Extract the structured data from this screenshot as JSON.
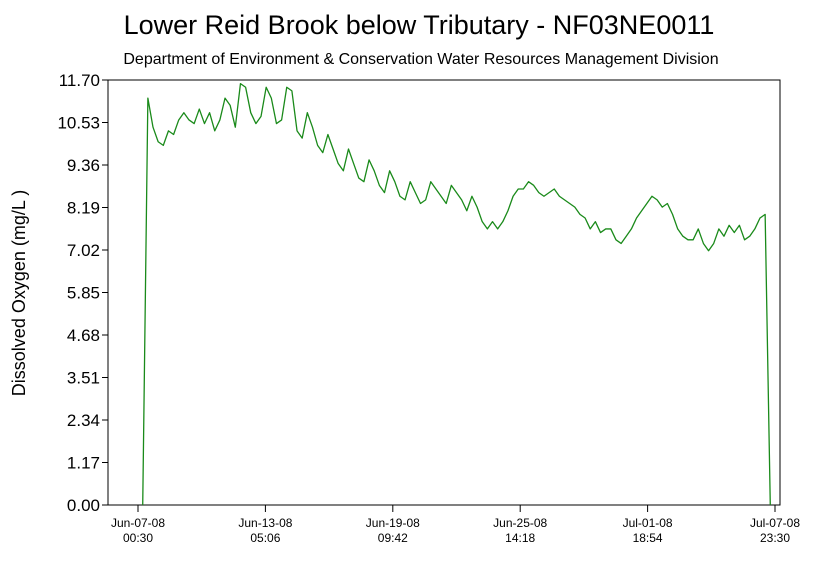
{
  "chart_data": {
    "type": "line",
    "title": "Lower Reid Brook below Tributary - NF03NE0011",
    "subtitle": "Department of Environment & Conservation Water Resources Management Division",
    "y_label": "Dissolved Oxygen (mg/L )",
    "color": "#1a8a1a",
    "x": [
      "2008-06-07 06:00",
      "2008-06-07 12:00",
      "2008-06-07 18:00",
      "2008-06-08 00:00",
      "2008-06-08 06:00",
      "2008-06-08 12:00",
      "2008-06-08 18:00",
      "2008-06-09 00:00",
      "2008-06-09 06:00",
      "2008-06-09 12:00",
      "2008-06-09 18:00",
      "2008-06-10 00:00",
      "2008-06-10 06:00",
      "2008-06-10 12:00",
      "2008-06-10 18:00",
      "2008-06-11 00:00",
      "2008-06-11 06:00",
      "2008-06-11 12:00",
      "2008-06-11 18:00",
      "2008-06-12 00:00",
      "2008-06-12 06:00",
      "2008-06-12 12:00",
      "2008-06-12 18:00",
      "2008-06-13 00:00",
      "2008-06-13 06:00",
      "2008-06-13 12:00",
      "2008-06-13 18:00",
      "2008-06-14 00:00",
      "2008-06-14 06:00",
      "2008-06-14 12:00",
      "2008-06-14 18:00",
      "2008-06-15 00:00",
      "2008-06-15 06:00",
      "2008-06-15 12:00",
      "2008-06-15 18:00",
      "2008-06-16 00:00",
      "2008-06-16 06:00",
      "2008-06-16 12:00",
      "2008-06-16 18:00",
      "2008-06-17 00:00",
      "2008-06-17 06:00",
      "2008-06-17 12:00",
      "2008-06-17 18:00",
      "2008-06-18 00:00",
      "2008-06-18 06:00",
      "2008-06-18 12:00",
      "2008-06-18 18:00",
      "2008-06-19 00:00",
      "2008-06-19 06:00",
      "2008-06-19 12:00",
      "2008-06-19 18:00",
      "2008-06-20 00:00",
      "2008-06-20 06:00",
      "2008-06-20 12:00",
      "2008-06-20 18:00",
      "2008-06-21 00:00",
      "2008-06-21 06:00",
      "2008-06-21 12:00",
      "2008-06-21 18:00",
      "2008-06-22 00:00",
      "2008-06-22 06:00",
      "2008-06-22 12:00",
      "2008-06-22 18:00",
      "2008-06-23 00:00",
      "2008-06-23 06:00",
      "2008-06-23 12:00",
      "2008-06-23 18:00",
      "2008-06-24 00:00",
      "2008-06-24 06:00",
      "2008-06-24 12:00",
      "2008-06-24 18:00",
      "2008-06-25 00:00",
      "2008-06-25 06:00",
      "2008-06-25 12:00",
      "2008-06-25 18:00",
      "2008-06-26 00:00",
      "2008-06-26 06:00",
      "2008-06-26 12:00",
      "2008-06-26 18:00",
      "2008-06-27 00:00",
      "2008-06-27 06:00",
      "2008-06-27 12:00",
      "2008-06-27 18:00",
      "2008-06-28 00:00",
      "2008-06-28 06:00",
      "2008-06-28 12:00",
      "2008-06-28 18:00",
      "2008-06-29 00:00",
      "2008-06-29 06:00",
      "2008-06-29 12:00",
      "2008-06-29 18:00",
      "2008-06-30 00:00",
      "2008-06-30 06:00",
      "2008-06-30 12:00",
      "2008-06-30 18:00",
      "2008-07-01 00:00",
      "2008-07-01 06:00",
      "2008-07-01 12:00",
      "2008-07-01 18:00",
      "2008-07-02 00:00",
      "2008-07-02 06:00",
      "2008-07-02 12:00",
      "2008-07-02 18:00",
      "2008-07-03 00:00",
      "2008-07-03 06:00",
      "2008-07-03 12:00",
      "2008-07-03 18:00",
      "2008-07-04 00:00",
      "2008-07-04 06:00",
      "2008-07-04 12:00",
      "2008-07-04 18:00",
      "2008-07-05 00:00",
      "2008-07-05 06:00",
      "2008-07-05 12:00",
      "2008-07-05 18:00",
      "2008-07-06 00:00",
      "2008-07-06 06:00",
      "2008-07-06 12:00",
      "2008-07-06 18:00",
      "2008-07-07 00:00",
      "2008-07-07 06:00",
      "2008-07-07 12:00",
      "2008-07-07 18:00"
    ],
    "values": [
      0,
      11.2,
      10.4,
      10.0,
      9.9,
      10.3,
      10.2,
      10.6,
      10.8,
      10.6,
      10.5,
      10.9,
      10.5,
      10.8,
      10.3,
      10.6,
      11.2,
      11.0,
      10.4,
      11.6,
      11.5,
      10.8,
      10.5,
      10.7,
      11.5,
      11.2,
      10.5,
      10.6,
      11.5,
      11.4,
      10.3,
      10.1,
      10.8,
      10.4,
      9.9,
      9.7,
      10.2,
      9.8,
      9.4,
      9.2,
      9.8,
      9.4,
      9.0,
      8.9,
      9.5,
      9.2,
      8.8,
      8.6,
      9.2,
      8.9,
      8.5,
      8.4,
      8.9,
      8.6,
      8.3,
      8.4,
      8.9,
      8.7,
      8.5,
      8.3,
      8.8,
      8.6,
      8.4,
      8.1,
      8.5,
      8.2,
      7.8,
      7.6,
      7.8,
      7.6,
      7.8,
      8.1,
      8.5,
      8.7,
      8.7,
      8.9,
      8.8,
      8.6,
      8.5,
      8.6,
      8.7,
      8.5,
      8.4,
      8.3,
      8.2,
      8.0,
      7.9,
      7.6,
      7.8,
      7.5,
      7.6,
      7.6,
      7.3,
      7.2,
      7.4,
      7.6,
      7.9,
      8.1,
      8.3,
      8.5,
      8.4,
      8.2,
      8.3,
      8.0,
      7.6,
      7.4,
      7.3,
      7.3,
      7.6,
      7.2,
      7.0,
      7.2,
      7.6,
      7.4,
      7.7,
      7.5,
      7.7,
      7.3,
      7.4,
      7.6,
      7.9,
      8.0,
      0
    ],
    "xlim": [
      "2008-06-05 13:30",
      "2008-07-08 05:20"
    ],
    "xticks": [
      {
        "value": "2008-06-07 00:30",
        "label": "Jun-07-08 00:30"
      },
      {
        "value": "2008-06-13 05:06",
        "label": "Jun-13-08 05:06"
      },
      {
        "value": "2008-06-19 09:42",
        "label": "Jun-19-08 09:42"
      },
      {
        "value": "2008-06-25 14:18",
        "label": "Jun-25-08 14:18"
      },
      {
        "value": "2008-07-01 18:54",
        "label": "Jul-01-08 18:54"
      },
      {
        "value": "2008-07-07 23:30",
        "label": "Jul-07-08 23:30"
      }
    ],
    "ylim": [
      0,
      11.7
    ],
    "yticks": [
      {
        "value": 0,
        "label": "0.00"
      },
      1.17,
      2.34,
      3.51,
      4.68,
      5.85,
      7.02,
      8.19,
      9.36,
      10.53,
      {
        "value": 11.7,
        "label": "11.70"
      }
    ]
  }
}
